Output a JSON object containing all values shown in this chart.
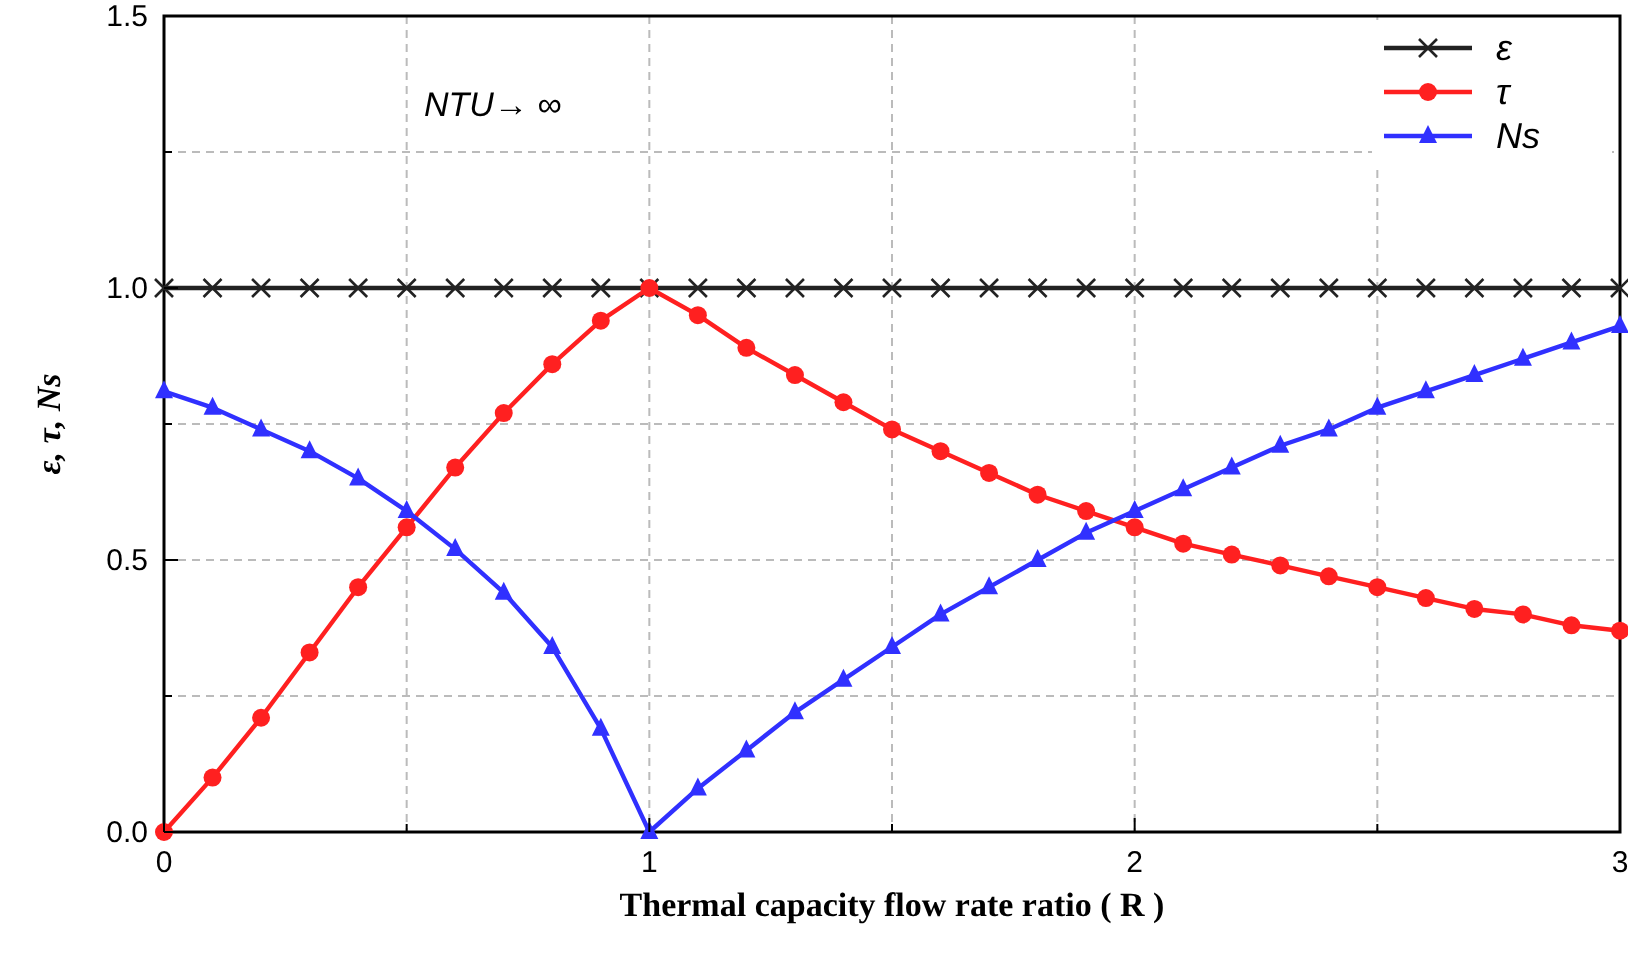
{
  "chart_data": {
    "type": "line",
    "xlabel": "Thermal capacity flow rate ratio ( R )",
    "ylabel": "ε, τ, Ns",
    "x": [
      0,
      0.1,
      0.2,
      0.3,
      0.4,
      0.5,
      0.6,
      0.7,
      0.8,
      0.9,
      1,
      1.1,
      1.2,
      1.3,
      1.4,
      1.5,
      1.6,
      1.7,
      1.8,
      1.9,
      2,
      2.1,
      2.2,
      2.3,
      2.4,
      2.5,
      2.6,
      2.7,
      2.8,
      2.9,
      3
    ],
    "series": [
      {
        "name": "ε",
        "color": "#222222",
        "marker": "cross",
        "values": [
          1,
          1,
          1,
          1,
          1,
          1,
          1,
          1,
          1,
          1,
          1,
          1,
          1,
          1,
          1,
          1,
          1,
          1,
          1,
          1,
          1,
          1,
          1,
          1,
          1,
          1,
          1,
          1,
          1,
          1,
          1
        ]
      },
      {
        "name": "τ",
        "color": "#ff2020",
        "marker": "circle",
        "values": [
          0,
          0.1,
          0.21,
          0.33,
          0.45,
          0.56,
          0.67,
          0.77,
          0.86,
          0.94,
          1,
          0.95,
          0.89,
          0.84,
          0.79,
          0.74,
          0.7,
          0.66,
          0.62,
          0.59,
          0.56,
          0.53,
          0.51,
          0.49,
          0.47,
          0.45,
          0.43,
          0.41,
          0.4,
          0.38,
          0.37
        ]
      },
      {
        "name": "Ns",
        "color": "#3030ff",
        "marker": "triangle",
        "values": [
          0.81,
          0.78,
          0.74,
          0.7,
          0.65,
          0.59,
          0.52,
          0.44,
          0.34,
          0.19,
          0,
          0.08,
          0.15,
          0.22,
          0.28,
          0.34,
          0.4,
          0.45,
          0.5,
          0.55,
          0.59,
          0.63,
          0.67,
          0.71,
          0.74,
          0.78,
          0.81,
          0.84,
          0.87,
          0.9,
          0.93
        ]
      }
    ],
    "xlim": [
      0,
      3
    ],
    "xticks": [
      0,
      {
        "value": 0.5,
        "label": null
      },
      1,
      {
        "value": 1.5,
        "label": null
      },
      2,
      {
        "value": 2.5,
        "label": null
      },
      3
    ],
    "ylim": [
      0,
      1.5
    ],
    "yticks": [
      {
        "value": 0,
        "label": "0.0"
      },
      {
        "value": 0.25,
        "label": null
      },
      0.5,
      {
        "value": 0.75,
        "label": null
      },
      {
        "value": 1,
        "label": "1.0"
      },
      {
        "value": 1.25,
        "label": null
      },
      1.5
    ],
    "grid": true,
    "legend": "top right",
    "line_style": "solid",
    "annotations": [
      "NTU→ ∞"
    ]
  }
}
